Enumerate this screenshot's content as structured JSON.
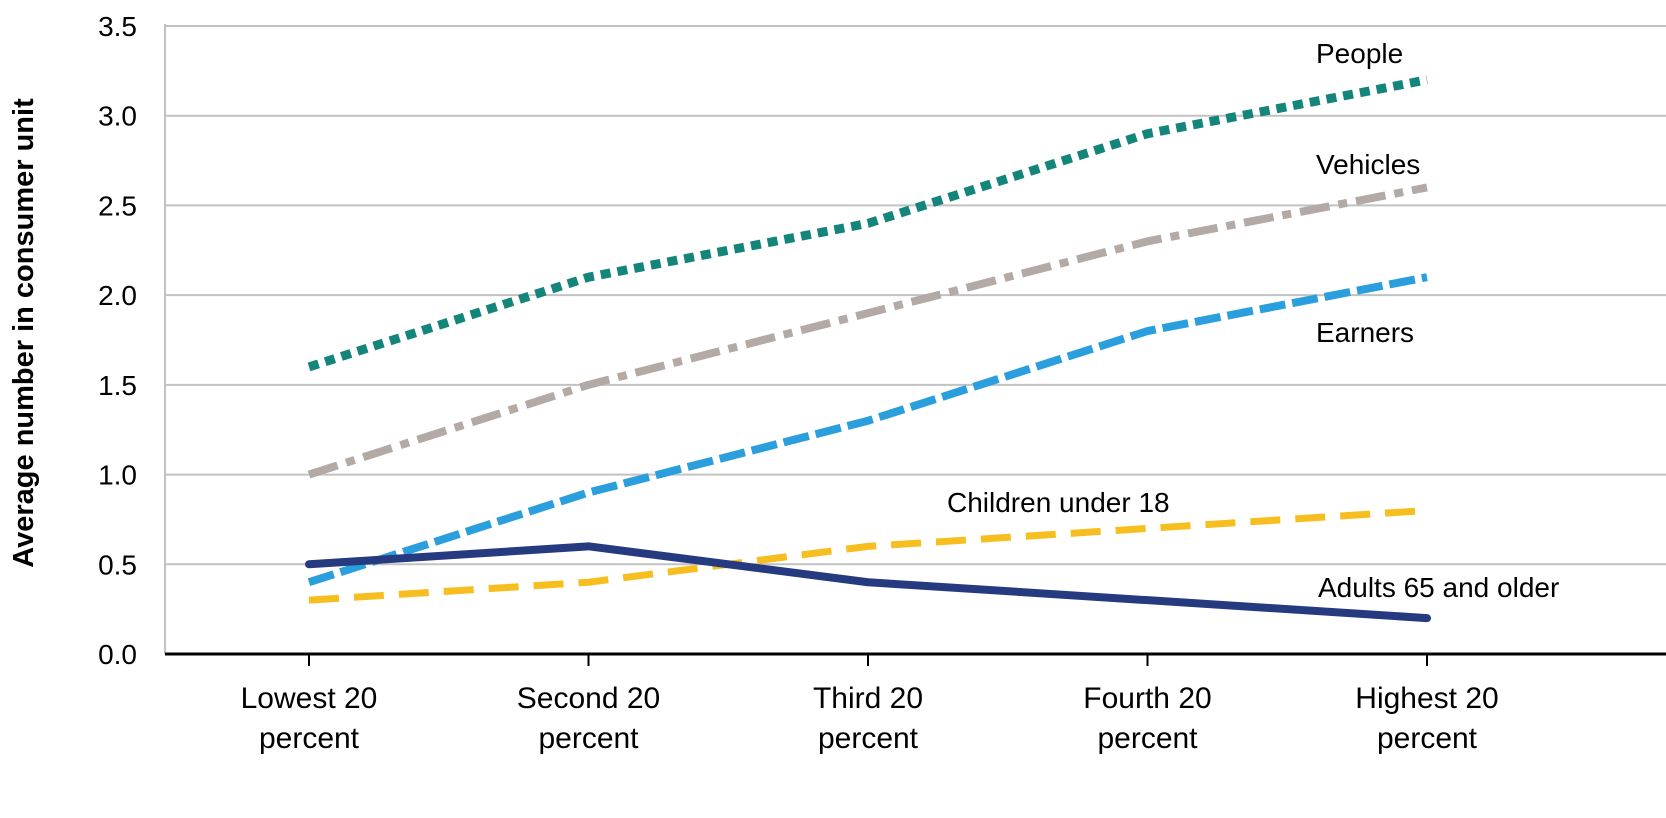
{
  "chart_data": {
    "type": "line",
    "ylabel": "Average number in consumer unit",
    "ylim": [
      0,
      3.5
    ],
    "yticks": [
      "0.0",
      "0.5",
      "1.0",
      "1.5",
      "2.0",
      "2.5",
      "3.0",
      "3.5"
    ],
    "categories": [
      [
        "Lowest 20",
        "percent"
      ],
      [
        "Second 20",
        "percent"
      ],
      [
        "Third 20",
        "percent"
      ],
      [
        "Fourth 20",
        "percent"
      ],
      [
        "Highest 20",
        "percent"
      ]
    ],
    "grid": true,
    "series": [
      {
        "name": "People",
        "values": [
          1.6,
          2.1,
          2.4,
          2.9,
          3.2
        ],
        "color": "#14857a",
        "style": "dotted"
      },
      {
        "name": "Vehicles",
        "values": [
          1.0,
          1.5,
          1.9,
          2.3,
          2.6
        ],
        "color": "#b3aaa6",
        "style": "dash-dot"
      },
      {
        "name": "Earners",
        "values": [
          0.4,
          0.9,
          1.3,
          1.8,
          2.1
        ],
        "color": "#2b9fdd",
        "style": "dashed"
      },
      {
        "name": "Children under 18",
        "values": [
          0.3,
          0.4,
          0.6,
          0.7,
          0.8
        ],
        "color": "#f6be1f",
        "style": "long-dash"
      },
      {
        "name": "Adults 65 and older",
        "values": [
          0.5,
          0.6,
          0.4,
          0.3,
          0.2
        ],
        "color": "#263a80",
        "style": "solid"
      }
    ]
  }
}
